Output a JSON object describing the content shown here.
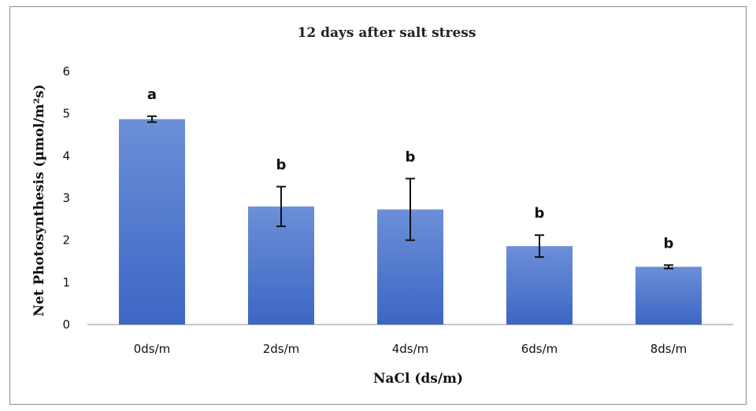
{
  "chart_data": {
    "type": "bar",
    "title": "12 days after salt stress",
    "xlabel": "NaCl (ds/m)",
    "ylabel": "Net Photosynthesis (µmol/m²s)",
    "categories": [
      "0ds/m",
      "2ds/m",
      "4ds/m",
      "6ds/m",
      "8ds/m"
    ],
    "values": [
      4.87,
      2.8,
      2.73,
      1.86,
      1.37
    ],
    "error": [
      0.07,
      0.47,
      0.73,
      0.26,
      0.04
    ],
    "significance": [
      "a",
      "b",
      "b",
      "b",
      "b"
    ],
    "ylim": [
      0,
      6
    ],
    "yticks": [
      "0",
      "1",
      "2",
      "3",
      "4",
      "5",
      "6"
    ],
    "grid": false,
    "legend": "none",
    "colors": {
      "bar_top": "#6c8fd8",
      "bar_bottom": "#3d66c4",
      "axis": "#8c8c8c",
      "error_bar": "#111111"
    }
  }
}
